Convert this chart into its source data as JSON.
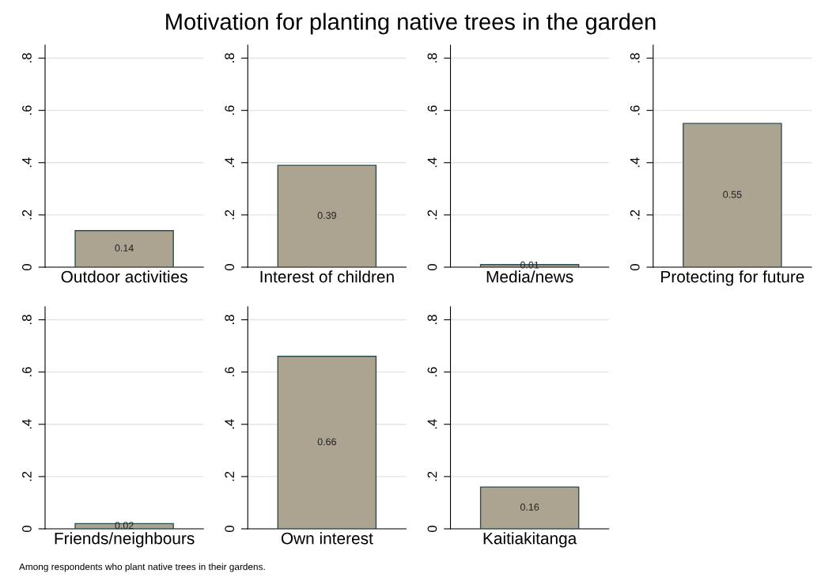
{
  "chart_data": [
    {
      "type": "bar",
      "title": "Motivation for planting native trees in the garden",
      "annotations": [
        "Among respondents who plant native trees in their gardens."
      ],
      "categories": [
        "Outdoor activities"
      ],
      "values": [
        0.14
      ],
      "color": "#aca491",
      "data_labels": true,
      "ylim": [
        0,
        0.85
      ],
      "yticks": [
        0,
        {
          "value": 0.2,
          "label": ".2"
        },
        {
          "value": 0.4,
          "label": ".4"
        },
        {
          "value": 0.6,
          "label": ".6"
        },
        {
          "value": 0.8,
          "label": ".8"
        }
      ],
      "grid": "y"
    },
    {
      "type": "bar",
      "categories": [
        "Interest of children"
      ],
      "values": [
        0.39
      ],
      "color": "#aca491",
      "data_labels": true,
      "ylim": [
        0,
        0.85
      ],
      "yticks": [
        0,
        {
          "value": 0.2,
          "label": ".2"
        },
        {
          "value": 0.4,
          "label": ".4"
        },
        {
          "value": 0.6,
          "label": ".6"
        },
        {
          "value": 0.8,
          "label": ".8"
        }
      ],
      "grid": "y"
    },
    {
      "type": "bar",
      "categories": [
        "Media/news"
      ],
      "values": [
        0.01
      ],
      "color": "#aca491",
      "data_labels": true,
      "ylim": [
        0,
        0.85
      ],
      "yticks": [
        0,
        {
          "value": 0.2,
          "label": ".2"
        },
        {
          "value": 0.4,
          "label": ".4"
        },
        {
          "value": 0.6,
          "label": ".6"
        },
        {
          "value": 0.8,
          "label": ".8"
        }
      ],
      "grid": "y"
    },
    {
      "type": "bar",
      "categories": [
        "Protecting for future"
      ],
      "values": [
        0.55
      ],
      "color": "#aca491",
      "data_labels": true,
      "ylim": [
        0,
        0.85
      ],
      "yticks": [
        0,
        {
          "value": 0.2,
          "label": ".2"
        },
        {
          "value": 0.4,
          "label": ".4"
        },
        {
          "value": 0.6,
          "label": ".6"
        },
        {
          "value": 0.8,
          "label": ".8"
        }
      ],
      "grid": "y"
    },
    {
      "type": "bar",
      "categories": [
        "Friends/neighbours"
      ],
      "values": [
        0.02
      ],
      "color": "#aca491",
      "data_labels": true,
      "ylim": [
        0,
        0.85
      ],
      "yticks": [
        0,
        {
          "value": 0.2,
          "label": ".2"
        },
        {
          "value": 0.4,
          "label": ".4"
        },
        {
          "value": 0.6,
          "label": ".6"
        },
        {
          "value": 0.8,
          "label": ".8"
        }
      ],
      "grid": "y"
    },
    {
      "type": "bar",
      "categories": [
        "Own interest"
      ],
      "values": [
        0.66
      ],
      "color": "#aca491",
      "data_labels": true,
      "ylim": [
        0,
        0.85
      ],
      "yticks": [
        0,
        {
          "value": 0.2,
          "label": ".2"
        },
        {
          "value": 0.4,
          "label": ".4"
        },
        {
          "value": 0.6,
          "label": ".6"
        },
        {
          "value": 0.8,
          "label": ".8"
        }
      ],
      "grid": "y"
    },
    {
      "type": "bar",
      "categories": [
        "Kaitiakitanga"
      ],
      "values": [
        0.16
      ],
      "color": "#aca491",
      "data_labels": true,
      "ylim": [
        0,
        0.85
      ],
      "yticks": [
        0,
        {
          "value": 0.2,
          "label": ".2"
        },
        {
          "value": 0.4,
          "label": ".4"
        },
        {
          "value": 0.6,
          "label": ".6"
        },
        {
          "value": 0.8,
          "label": ".8"
        }
      ],
      "grid": "y"
    }
  ]
}
